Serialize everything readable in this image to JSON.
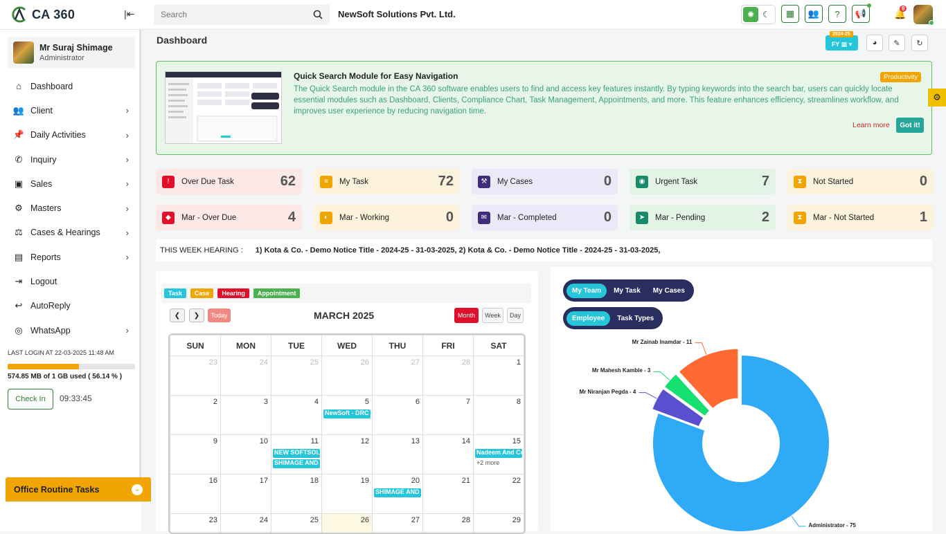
{
  "app": {
    "logo_text": "CA 360",
    "company": "NewSoft Solutions Pvt. Ltd.",
    "notification_count": "9"
  },
  "search": {
    "placeholder": "Search"
  },
  "user": {
    "name": "Mr Suraj Shimage",
    "role": "Administrator"
  },
  "sidebar": {
    "items": [
      {
        "label": "Dashboard",
        "icon": "home-icon",
        "glyph": "⌂",
        "chevron": false
      },
      {
        "label": "Client",
        "icon": "users-icon",
        "glyph": "👥",
        "chevron": true
      },
      {
        "label": "Daily Activities",
        "icon": "pin-icon",
        "glyph": "📌",
        "chevron": true
      },
      {
        "label": "Inquiry",
        "icon": "phone-icon",
        "glyph": "✆",
        "chevron": true
      },
      {
        "label": "Sales",
        "icon": "cash-icon",
        "glyph": "▣",
        "chevron": true
      },
      {
        "label": "Masters",
        "icon": "gears-icon",
        "glyph": "⚙",
        "chevron": true
      },
      {
        "label": "Cases & Hearings",
        "icon": "scale-icon",
        "glyph": "⚖",
        "chevron": true
      },
      {
        "label": "Reports",
        "icon": "report-icon",
        "glyph": "▤",
        "chevron": true
      },
      {
        "label": "Logout",
        "icon": "logout-icon",
        "glyph": "⇥",
        "chevron": false
      },
      {
        "label": "AutoReply",
        "icon": "reply-icon",
        "glyph": "↩",
        "chevron": false
      },
      {
        "label": "WhatsApp",
        "icon": "whatsapp-icon",
        "glyph": "◎",
        "chevron": true
      }
    ],
    "last_login": "LAST LOGIN AT 22-03-2025 11:48 AM",
    "storage": "574.85 MB of 1 GB used ( 56.14 % )",
    "storage_fraction": 0.5614,
    "checkin": "Check In",
    "time": "09:33:45",
    "routine": "Office Routine Tasks"
  },
  "dashboard": {
    "title": "Dashboard",
    "fy_tag": "2024-25",
    "fy_label": "FY ▦ ▾"
  },
  "tip": {
    "title": "Quick Search Module for Easy Navigation",
    "tag": "Productivity",
    "text": "The Quick Search module in the CA 360 software enables users to find and access key features instantly. By typing keywords into the search bar, users can quickly locate essential modules such as Dashboard, Clients, Compliance Chart, Task Management, Appointments, and more. This feature enhances efficiency, streamlines workflow, and improves user experience by reducing navigation time.",
    "learn": "Learn more",
    "got": "Got it!"
  },
  "stats": [
    {
      "label": "Over Due Task",
      "value": "62",
      "bg": "#fde8e8",
      "ic": "#e0102c",
      "icon": "overdue-icon",
      "glyph": "!"
    },
    {
      "label": "My Task",
      "value": "72",
      "bg": "#fdf3dc",
      "ic": "#f0a500",
      "icon": "task-icon",
      "glyph": "≡"
    },
    {
      "label": "My Cases",
      "value": "0",
      "bg": "#ece8f8",
      "ic": "#3d2d7a",
      "icon": "gavel-icon",
      "glyph": "⚒"
    },
    {
      "label": "Urgent Task",
      "value": "7",
      "bg": "#e3f3e6",
      "ic": "#1b8a6b",
      "icon": "urgent-icon",
      "glyph": "◉"
    },
    {
      "label": "Not Started",
      "value": "0",
      "bg": "#fdf3dc",
      "ic": "#f0a500",
      "icon": "hourglass-icon",
      "glyph": "⧗"
    },
    {
      "label": "Mar - Over Due",
      "value": "4",
      "bg": "#fde8e8",
      "ic": "#e0102c",
      "icon": "overdue-icon",
      "glyph": "◆"
    },
    {
      "label": "Mar - Working",
      "value": "0",
      "bg": "#fdf3dc",
      "ic": "#f0a500",
      "icon": "working-icon",
      "glyph": "◐"
    },
    {
      "label": "Mar - Completed",
      "value": "0",
      "bg": "#ece8f8",
      "ic": "#3d2d7a",
      "icon": "completed-icon",
      "glyph": "✉"
    },
    {
      "label": "Mar - Pending",
      "value": "2",
      "bg": "#e3f3e6",
      "ic": "#1b8a6b",
      "icon": "send-icon",
      "glyph": "➤"
    },
    {
      "label": "Mar - Not Started",
      "value": "1",
      "bg": "#fdf3dc",
      "ic": "#f0a500",
      "icon": "hourglass-icon",
      "glyph": "⧗"
    }
  ],
  "hearing": {
    "label": "THIS WEEK HEARING :",
    "text": "1) Kota & Co. - Demo Notice Title - 2024-25 - 31-03-2025,  2) Kota & Co. - Demo Notice Title - 2024-25 - 31-03-2025,"
  },
  "calendar": {
    "legend": [
      {
        "label": "Task",
        "color": "#26c6da"
      },
      {
        "label": "Case",
        "color": "#f0a500"
      },
      {
        "label": "Hearing",
        "color": "#e0102c"
      },
      {
        "label": "Appointment",
        "color": "#4caf50"
      }
    ],
    "today": "Today",
    "title": "MARCH 2025",
    "views": [
      "Month",
      "Week",
      "Day"
    ],
    "days": [
      "SUN",
      "MON",
      "TUE",
      "WED",
      "THU",
      "FRI",
      "SAT"
    ],
    "weeks": [
      [
        {
          "d": "23",
          "dim": true
        },
        {
          "d": "24",
          "dim": true
        },
        {
          "d": "25",
          "dim": true
        },
        {
          "d": "26",
          "dim": true
        },
        {
          "d": "27",
          "dim": true
        },
        {
          "d": "28",
          "dim": true
        },
        {
          "d": "1"
        }
      ],
      [
        {
          "d": "2"
        },
        {
          "d": "3"
        },
        {
          "d": "4"
        },
        {
          "d": "5",
          "ev": [
            "NewSoft - DRC I"
          ]
        },
        {
          "d": "6"
        },
        {
          "d": "7"
        },
        {
          "d": "8"
        }
      ],
      [
        {
          "d": "9"
        },
        {
          "d": "10"
        },
        {
          "d": "11",
          "ev": [
            "NEW SOFTSOLU",
            "SHIMAGE AND I"
          ]
        },
        {
          "d": "12"
        },
        {
          "d": "13"
        },
        {
          "d": "14"
        },
        {
          "d": "15",
          "ev": [
            "Nadeem And Co"
          ],
          "more": "+2 more"
        }
      ],
      [
        {
          "d": "16"
        },
        {
          "d": "17"
        },
        {
          "d": "18"
        },
        {
          "d": "19"
        },
        {
          "d": "20",
          "ev": [
            "SHIMAGE AND I"
          ]
        },
        {
          "d": "21"
        },
        {
          "d": "22"
        }
      ],
      [
        {
          "d": "23"
        },
        {
          "d": "24"
        },
        {
          "d": "25"
        },
        {
          "d": "26",
          "hl": true
        },
        {
          "d": "27"
        },
        {
          "d": "28"
        },
        {
          "d": "29"
        }
      ]
    ]
  },
  "team": {
    "tabs1": [
      "My Team",
      "My Task",
      "My Cases"
    ],
    "tabs2": [
      "Employee",
      "Task Types"
    ]
  },
  "chart_data": {
    "type": "pie",
    "title": "",
    "donut": true,
    "slices": [
      {
        "label": "Administrator - 75",
        "value": 75,
        "color": "#2faaf7"
      },
      {
        "label": "Mr Niranjan Pegda - 4",
        "value": 4,
        "color": "#5a4fcf"
      },
      {
        "label": "Mr Mahesh Kamble - 3",
        "value": 3,
        "color": "#16e070"
      },
      {
        "label": "Mr Zainab Inamdar - 11",
        "value": 11,
        "color": "#ff6a33"
      }
    ]
  }
}
